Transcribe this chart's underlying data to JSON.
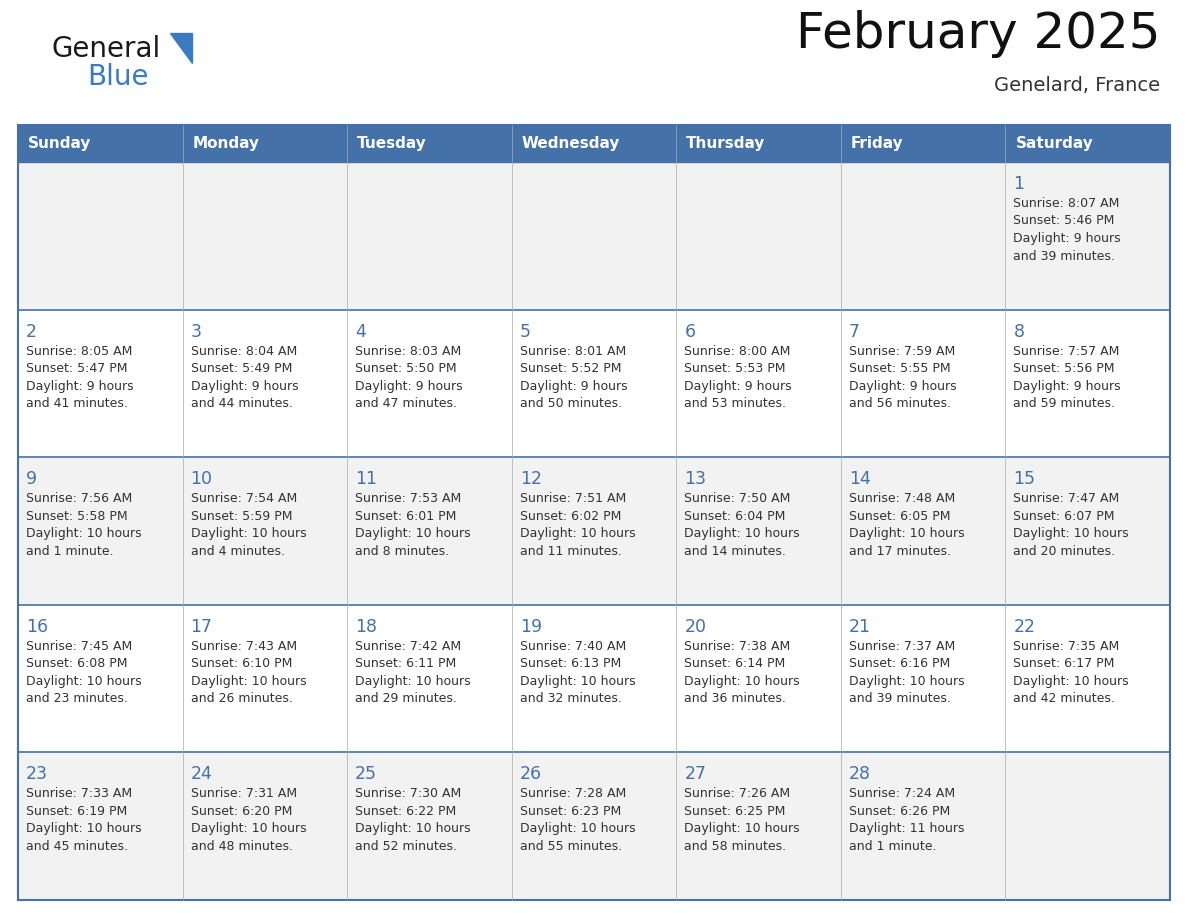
{
  "title": "February 2025",
  "subtitle": "Genelard, France",
  "header_bg_color": "#4472a8",
  "header_text_color": "#ffffff",
  "row_bg_even": "#f2f2f2",
  "row_bg_odd": "#ffffff",
  "border_color": "#4472a8",
  "day_number_color": "#4472a8",
  "text_color": "#333333",
  "days_of_week": [
    "Sunday",
    "Monday",
    "Tuesday",
    "Wednesday",
    "Thursday",
    "Friday",
    "Saturday"
  ],
  "calendar": [
    [
      null,
      null,
      null,
      null,
      null,
      null,
      1
    ],
    [
      2,
      3,
      4,
      5,
      6,
      7,
      8
    ],
    [
      9,
      10,
      11,
      12,
      13,
      14,
      15
    ],
    [
      16,
      17,
      18,
      19,
      20,
      21,
      22
    ],
    [
      23,
      24,
      25,
      26,
      27,
      28,
      null
    ]
  ],
  "cell_data": {
    "1": {
      "sunrise": "8:07 AM",
      "sunset": "5:46 PM",
      "daylight_h": "9 hours",
      "daylight_m": "and 39 minutes."
    },
    "2": {
      "sunrise": "8:05 AM",
      "sunset": "5:47 PM",
      "daylight_h": "9 hours",
      "daylight_m": "and 41 minutes."
    },
    "3": {
      "sunrise": "8:04 AM",
      "sunset": "5:49 PM",
      "daylight_h": "9 hours",
      "daylight_m": "and 44 minutes."
    },
    "4": {
      "sunrise": "8:03 AM",
      "sunset": "5:50 PM",
      "daylight_h": "9 hours",
      "daylight_m": "and 47 minutes."
    },
    "5": {
      "sunrise": "8:01 AM",
      "sunset": "5:52 PM",
      "daylight_h": "9 hours",
      "daylight_m": "and 50 minutes."
    },
    "6": {
      "sunrise": "8:00 AM",
      "sunset": "5:53 PM",
      "daylight_h": "9 hours",
      "daylight_m": "and 53 minutes."
    },
    "7": {
      "sunrise": "7:59 AM",
      "sunset": "5:55 PM",
      "daylight_h": "9 hours",
      "daylight_m": "and 56 minutes."
    },
    "8": {
      "sunrise": "7:57 AM",
      "sunset": "5:56 PM",
      "daylight_h": "9 hours",
      "daylight_m": "and 59 minutes."
    },
    "9": {
      "sunrise": "7:56 AM",
      "sunset": "5:58 PM",
      "daylight_h": "10 hours",
      "daylight_m": "and 1 minute."
    },
    "10": {
      "sunrise": "7:54 AM",
      "sunset": "5:59 PM",
      "daylight_h": "10 hours",
      "daylight_m": "and 4 minutes."
    },
    "11": {
      "sunrise": "7:53 AM",
      "sunset": "6:01 PM",
      "daylight_h": "10 hours",
      "daylight_m": "and 8 minutes."
    },
    "12": {
      "sunrise": "7:51 AM",
      "sunset": "6:02 PM",
      "daylight_h": "10 hours",
      "daylight_m": "and 11 minutes."
    },
    "13": {
      "sunrise": "7:50 AM",
      "sunset": "6:04 PM",
      "daylight_h": "10 hours",
      "daylight_m": "and 14 minutes."
    },
    "14": {
      "sunrise": "7:48 AM",
      "sunset": "6:05 PM",
      "daylight_h": "10 hours",
      "daylight_m": "and 17 minutes."
    },
    "15": {
      "sunrise": "7:47 AM",
      "sunset": "6:07 PM",
      "daylight_h": "10 hours",
      "daylight_m": "and 20 minutes."
    },
    "16": {
      "sunrise": "7:45 AM",
      "sunset": "6:08 PM",
      "daylight_h": "10 hours",
      "daylight_m": "and 23 minutes."
    },
    "17": {
      "sunrise": "7:43 AM",
      "sunset": "6:10 PM",
      "daylight_h": "10 hours",
      "daylight_m": "and 26 minutes."
    },
    "18": {
      "sunrise": "7:42 AM",
      "sunset": "6:11 PM",
      "daylight_h": "10 hours",
      "daylight_m": "and 29 minutes."
    },
    "19": {
      "sunrise": "7:40 AM",
      "sunset": "6:13 PM",
      "daylight_h": "10 hours",
      "daylight_m": "and 32 minutes."
    },
    "20": {
      "sunrise": "7:38 AM",
      "sunset": "6:14 PM",
      "daylight_h": "10 hours",
      "daylight_m": "and 36 minutes."
    },
    "21": {
      "sunrise": "7:37 AM",
      "sunset": "6:16 PM",
      "daylight_h": "10 hours",
      "daylight_m": "and 39 minutes."
    },
    "22": {
      "sunrise": "7:35 AM",
      "sunset": "6:17 PM",
      "daylight_h": "10 hours",
      "daylight_m": "and 42 minutes."
    },
    "23": {
      "sunrise": "7:33 AM",
      "sunset": "6:19 PM",
      "daylight_h": "10 hours",
      "daylight_m": "and 45 minutes."
    },
    "24": {
      "sunrise": "7:31 AM",
      "sunset": "6:20 PM",
      "daylight_h": "10 hours",
      "daylight_m": "and 48 minutes."
    },
    "25": {
      "sunrise": "7:30 AM",
      "sunset": "6:22 PM",
      "daylight_h": "10 hours",
      "daylight_m": "and 52 minutes."
    },
    "26": {
      "sunrise": "7:28 AM",
      "sunset": "6:23 PM",
      "daylight_h": "10 hours",
      "daylight_m": "and 55 minutes."
    },
    "27": {
      "sunrise": "7:26 AM",
      "sunset": "6:25 PM",
      "daylight_h": "10 hours",
      "daylight_m": "and 58 minutes."
    },
    "28": {
      "sunrise": "7:24 AM",
      "sunset": "6:26 PM",
      "daylight_h": "11 hours",
      "daylight_m": "and 1 minute."
    }
  },
  "logo_color1": "#1a1a1a",
  "logo_color2": "#3a7bbf",
  "fig_width": 11.88,
  "fig_height": 9.18,
  "dpi": 100
}
